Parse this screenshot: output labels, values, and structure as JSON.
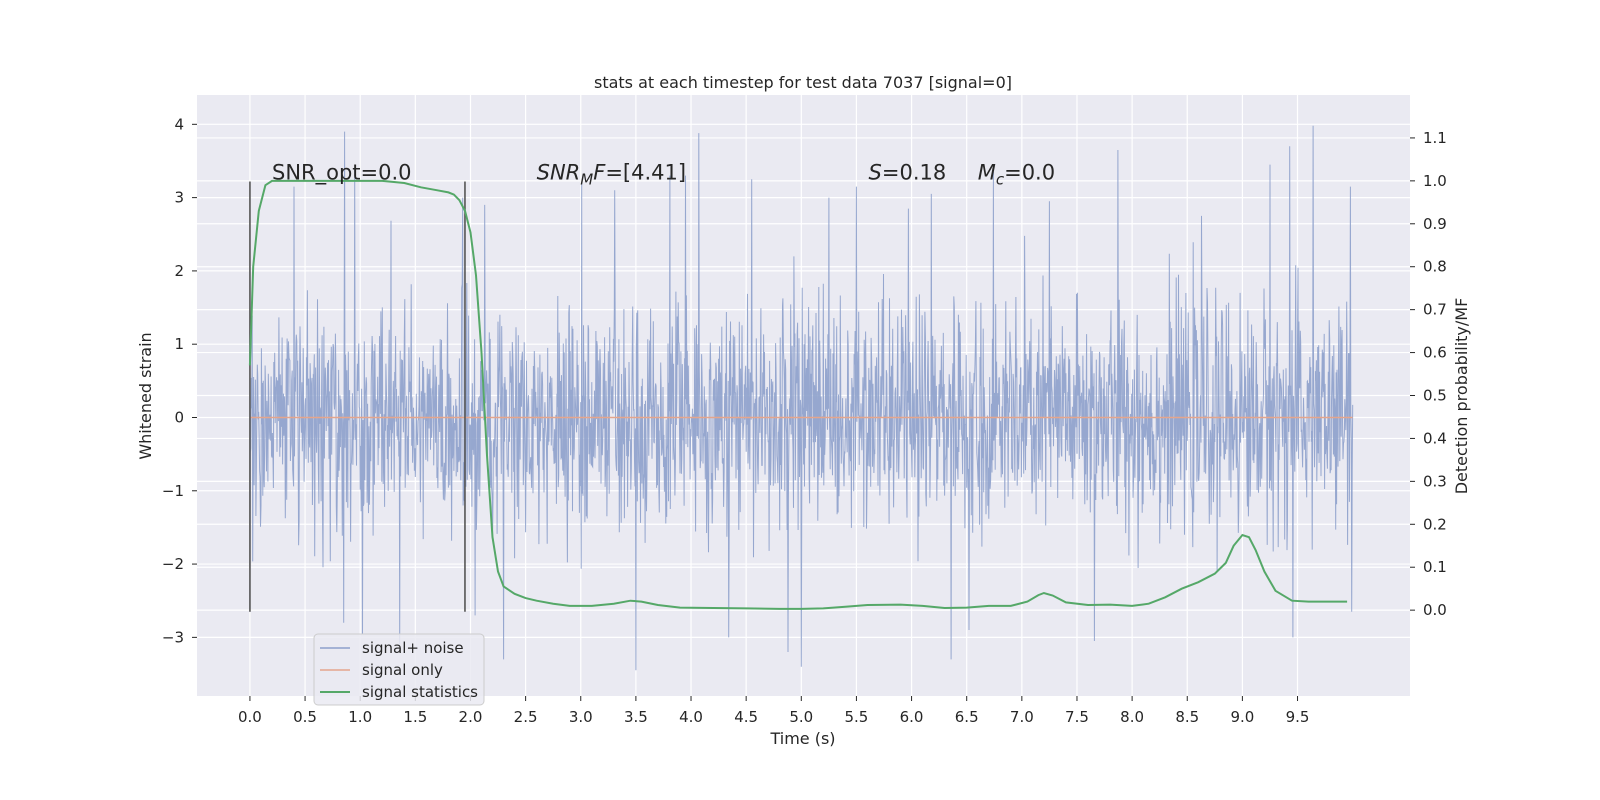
{
  "chart_data": {
    "type": "line",
    "title": "stats at each timestep for test data 7037 [signal=0]",
    "xlabel": "Time (s)",
    "ylabel": "Whitened strain",
    "y2label": "Detection probability/MF",
    "xlim": [
      -0.48,
      10.52
    ],
    "ylim": [
      -3.8,
      4.4
    ],
    "y2lim": [
      -0.2,
      1.2
    ],
    "x_ticks": [
      "0.0",
      "0.5",
      "1.0",
      "1.5",
      "2.0",
      "2.5",
      "3.0",
      "3.5",
      "4.0",
      "4.5",
      "5.0",
      "5.5",
      "6.0",
      "6.5",
      "7.0",
      "7.5",
      "8.0",
      "8.5",
      "9.0",
      "9.5"
    ],
    "y_ticks": [
      "4",
      "3",
      "2",
      "1",
      "0",
      "−1",
      "−2",
      "−3"
    ],
    "y2_ticks": [
      "1.1",
      "1.0",
      "0.9",
      "0.8",
      "0.7",
      "0.6",
      "0.5",
      "0.4",
      "0.3",
      "0.2",
      "0.1",
      "0.0"
    ],
    "y_tick_values": [
      4,
      3,
      2,
      1,
      0,
      -1,
      -2,
      -3
    ],
    "y2_tick_values": [
      1.1,
      1.0,
      0.9,
      0.8,
      0.7,
      0.6,
      0.5,
      0.4,
      0.3,
      0.2,
      0.1,
      0.0
    ],
    "grid": true,
    "legend_position": "lower-left",
    "noise": {
      "x_range": [
        0.0,
        10.0
      ],
      "std": 0.75,
      "spikes": [
        {
          "x": 0.86,
          "y": 3.9
        },
        {
          "x": 0.95,
          "y": 3.4
        },
        {
          "x": 0.4,
          "y": 3.15
        },
        {
          "x": 1.93,
          "y": 3.0
        },
        {
          "x": 2.13,
          "y": 2.9
        },
        {
          "x": 3.01,
          "y": 3.2
        },
        {
          "x": 3.31,
          "y": 3.1
        },
        {
          "x": 3.81,
          "y": 3.3
        },
        {
          "x": 3.95,
          "y": 3.3
        },
        {
          "x": 4.07,
          "y": 3.88
        },
        {
          "x": 4.55,
          "y": 3.25
        },
        {
          "x": 5.25,
          "y": 3.0
        },
        {
          "x": 5.5,
          "y": 3.15
        },
        {
          "x": 5.97,
          "y": 2.85
        },
        {
          "x": 6.18,
          "y": 3.05
        },
        {
          "x": 6.36,
          "y": 4.05
        },
        {
          "x": 6.74,
          "y": 3.35
        },
        {
          "x": 7.25,
          "y": 2.95
        },
        {
          "x": 7.87,
          "y": 3.65
        },
        {
          "x": 8.63,
          "y": 2.75
        },
        {
          "x": 9.25,
          "y": 3.45
        },
        {
          "x": 9.43,
          "y": 3.7
        },
        {
          "x": 9.64,
          "y": 3.98
        },
        {
          "x": 9.98,
          "y": 3.15
        },
        {
          "x": 0.85,
          "y": -2.8
        },
        {
          "x": 1.36,
          "y": -3.1
        },
        {
          "x": 2.04,
          "y": -2.7
        },
        {
          "x": 2.3,
          "y": -3.3
        },
        {
          "x": 3.5,
          "y": -3.45
        },
        {
          "x": 4.34,
          "y": -3.0
        },
        {
          "x": 5.0,
          "y": -3.4
        },
        {
          "x": 6.36,
          "y": -3.3
        },
        {
          "x": 7.66,
          "y": -3.05
        },
        {
          "x": 9.46,
          "y": -3.0
        },
        {
          "x": 9.99,
          "y": -2.65
        },
        {
          "x": 0.0,
          "y": -2.65
        },
        {
          "x": 1.02,
          "y": -2.95
        },
        {
          "x": 4.88,
          "y": -3.2
        },
        {
          "x": 6.52,
          "y": -2.9
        }
      ]
    },
    "signal_only": {
      "x": [
        0.0,
        10.0
      ],
      "y": [
        0.0,
        0.0
      ]
    },
    "statistics": {
      "x": [
        0.0,
        0.03,
        0.08,
        0.14,
        0.2,
        0.3,
        0.5,
        0.8,
        1.0,
        1.2,
        1.4,
        1.55,
        1.7,
        1.8,
        1.85,
        1.9,
        1.95,
        2.0,
        2.05,
        2.1,
        2.15,
        2.2,
        2.25,
        2.3,
        2.4,
        2.5,
        2.6,
        2.75,
        2.9,
        3.1,
        3.3,
        3.45,
        3.55,
        3.7,
        3.9,
        4.2,
        4.5,
        4.8,
        5.0,
        5.2,
        5.4,
        5.6,
        5.9,
        6.1,
        6.3,
        6.5,
        6.7,
        6.9,
        7.05,
        7.15,
        7.2,
        7.28,
        7.4,
        7.6,
        7.8,
        8.0,
        8.15,
        8.3,
        8.45,
        8.6,
        8.75,
        8.85,
        8.92,
        9.0,
        9.06,
        9.12,
        9.2,
        9.3,
        9.45,
        9.6,
        9.8,
        9.95
      ],
      "y": [
        0.57,
        0.8,
        0.93,
        0.99,
        1.0,
        1.0,
        1.0,
        1.0,
        1.0,
        1.0,
        0.995,
        0.985,
        0.978,
        0.973,
        0.968,
        0.955,
        0.93,
        0.88,
        0.78,
        0.6,
        0.36,
        0.17,
        0.09,
        0.055,
        0.038,
        0.028,
        0.022,
        0.015,
        0.01,
        0.01,
        0.015,
        0.022,
        0.02,
        0.012,
        0.006,
        0.005,
        0.004,
        0.003,
        0.003,
        0.004,
        0.008,
        0.012,
        0.013,
        0.01,
        0.005,
        0.006,
        0.01,
        0.01,
        0.02,
        0.035,
        0.04,
        0.034,
        0.018,
        0.012,
        0.013,
        0.01,
        0.015,
        0.03,
        0.05,
        0.065,
        0.085,
        0.11,
        0.15,
        0.175,
        0.17,
        0.14,
        0.09,
        0.045,
        0.022,
        0.02,
        0.02,
        0.02
      ]
    },
    "vlines": [
      {
        "x": 0.0,
        "y": [
          -2.65,
          3.22
        ]
      },
      {
        "x": 1.95,
        "y": [
          -2.65,
          3.22
        ]
      }
    ],
    "annotations": [
      {
        "id": "snr-opt",
        "x": 0.2,
        "y": 3.25,
        "parts": [
          {
            "t": "SNR_opt=0.0",
            "style": "normal"
          }
        ]
      },
      {
        "id": "snr-mf",
        "x": 2.6,
        "y": 3.25,
        "parts": [
          {
            "t": "SNR",
            "style": "italic"
          },
          {
            "t": "M",
            "style": "italic-sub"
          },
          {
            "t": "F",
            "style": "italic"
          },
          {
            "t": "=[4.41]",
            "style": "normal"
          }
        ]
      },
      {
        "id": "s-stat",
        "x": 5.61,
        "y": 3.25,
        "parts": [
          {
            "t": "S",
            "style": "italic"
          },
          {
            "t": "=0.18",
            "style": "normal"
          }
        ]
      },
      {
        "id": "mc",
        "x": 6.6,
        "y": 3.25,
        "parts": [
          {
            "t": "M",
            "style": "italic"
          },
          {
            "t": "c",
            "style": "italic-sub"
          },
          {
            "t": "=0.0",
            "style": "normal"
          }
        ]
      }
    ],
    "series": [
      {
        "name": "signal+ noise",
        "color": "#8da0cb"
      },
      {
        "name": "signal only",
        "color": "#e5a58c"
      },
      {
        "name": "signal statistics",
        "color": "#55a868"
      }
    ]
  }
}
